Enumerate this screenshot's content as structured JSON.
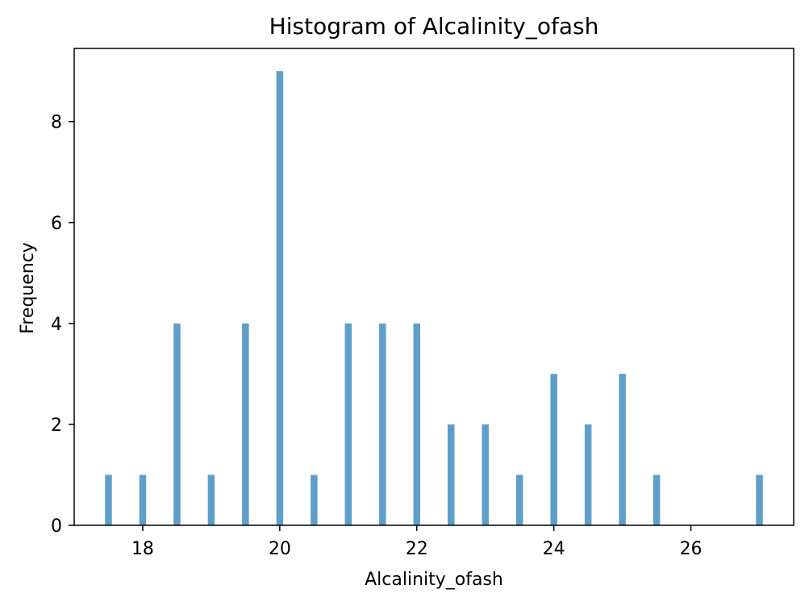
{
  "chart_data": {
    "type": "bar",
    "title": "Histogram of Alcalinity_ofash",
    "xlabel": "Alcalinity_ofash",
    "ylabel": "Frequency",
    "xlim": [
      17.0,
      27.5
    ],
    "ylim": [
      0,
      9.45
    ],
    "xticks": [
      18,
      20,
      22,
      24,
      26
    ],
    "yticks": [
      0,
      2,
      4,
      6,
      8
    ],
    "bar_width": 0.1,
    "bar_color": "#5f9ec9",
    "grid": false,
    "bins": [
      {
        "x": 17.5,
        "count": 1
      },
      {
        "x": 18.0,
        "count": 1
      },
      {
        "x": 18.5,
        "count": 4
      },
      {
        "x": 19.0,
        "count": 1
      },
      {
        "x": 19.5,
        "count": 4
      },
      {
        "x": 20.0,
        "count": 9
      },
      {
        "x": 20.5,
        "count": 1
      },
      {
        "x": 21.0,
        "count": 4
      },
      {
        "x": 21.5,
        "count": 4
      },
      {
        "x": 22.0,
        "count": 4
      },
      {
        "x": 22.5,
        "count": 2
      },
      {
        "x": 23.0,
        "count": 2
      },
      {
        "x": 23.5,
        "count": 1
      },
      {
        "x": 24.0,
        "count": 3
      },
      {
        "x": 24.5,
        "count": 2
      },
      {
        "x": 25.0,
        "count": 3
      },
      {
        "x": 25.5,
        "count": 1
      },
      {
        "x": 27.0,
        "count": 1
      }
    ]
  }
}
